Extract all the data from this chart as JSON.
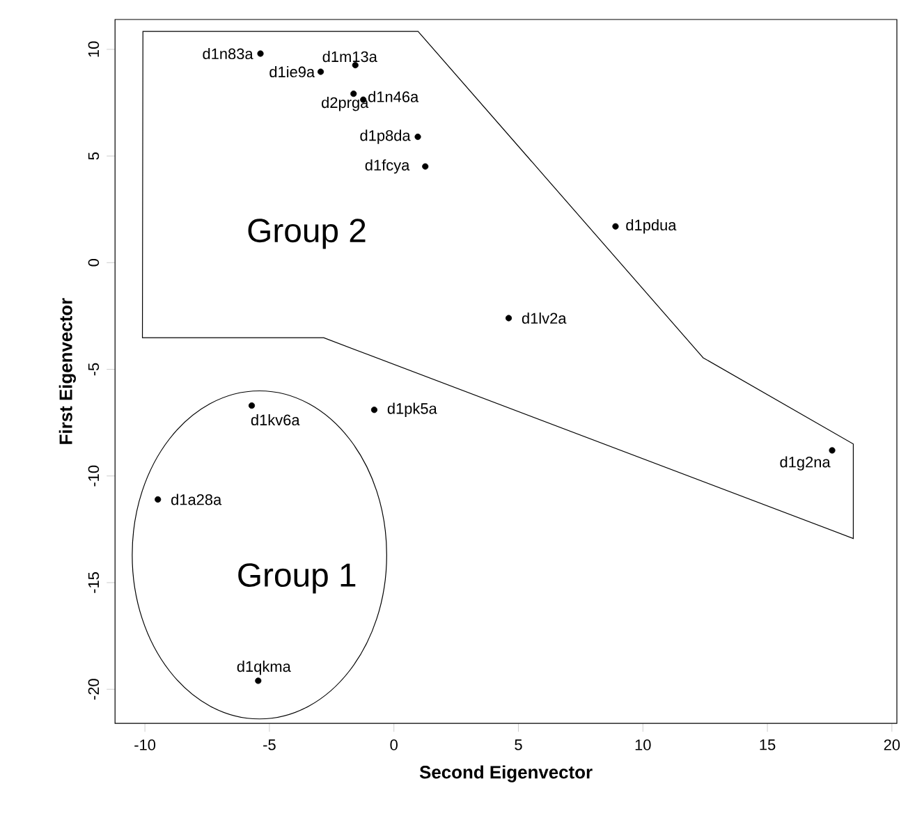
{
  "chart_data": {
    "type": "scatter",
    "xlabel": "Second Eigenvector",
    "ylabel": "First Eigenvector",
    "x": [
      -5.36,
      -1.55,
      -2.94,
      -1.62,
      -1.23,
      0.96,
      1.26,
      8.9,
      4.61,
      -0.79,
      -5.71,
      -9.48,
      17.6,
      -5.45
    ],
    "values": [
      9.8,
      9.26,
      8.95,
      7.92,
      7.64,
      5.9,
      4.51,
      1.7,
      -2.6,
      -6.9,
      -6.7,
      -11.1,
      -8.8,
      -19.6
    ],
    "color": "#000000",
    "marker": "circle",
    "grid": false,
    "xlim": [
      -11.2,
      20.2
    ],
    "ylim": [
      -21.6,
      11.4
    ],
    "xticks": [
      -10,
      -5,
      0,
      5,
      10,
      15,
      20
    ],
    "yticks": [
      -20,
      -15,
      -10,
      -5,
      0,
      5,
      10
    ],
    "annotations": [
      {
        "text": "d1n83a",
        "x": -5.36,
        "y": 9.8
      },
      {
        "text": "d1m13a",
        "x": -1.55,
        "y": 9.26
      },
      {
        "text": "d1ie9a",
        "x": -2.94,
        "y": 8.95
      },
      {
        "text": "d2prga",
        "x": -1.62,
        "y": 7.92
      },
      {
        "text": "d1n46a",
        "x": -1.23,
        "y": 7.64
      },
      {
        "text": "d1p8da",
        "x": 0.96,
        "y": 5.9
      },
      {
        "text": "d1fcya",
        "x": 1.26,
        "y": 4.51
      },
      {
        "text": "d1pdua",
        "x": 8.9,
        "y": 1.7
      },
      {
        "text": "d1lv2a",
        "x": 4.61,
        "y": -2.6
      },
      {
        "text": "d1pk5a",
        "x": -0.79,
        "y": -6.9
      },
      {
        "text": "d1kv6a",
        "x": -5.71,
        "y": -6.7
      },
      {
        "text": "d1a28a",
        "x": -9.48,
        "y": -11.1
      },
      {
        "text": "d1g2na",
        "x": 17.6,
        "y": -8.8
      },
      {
        "text": "d1qkma",
        "x": -5.45,
        "y": -19.6
      },
      "Group 2",
      "Group 1"
    ]
  }
}
